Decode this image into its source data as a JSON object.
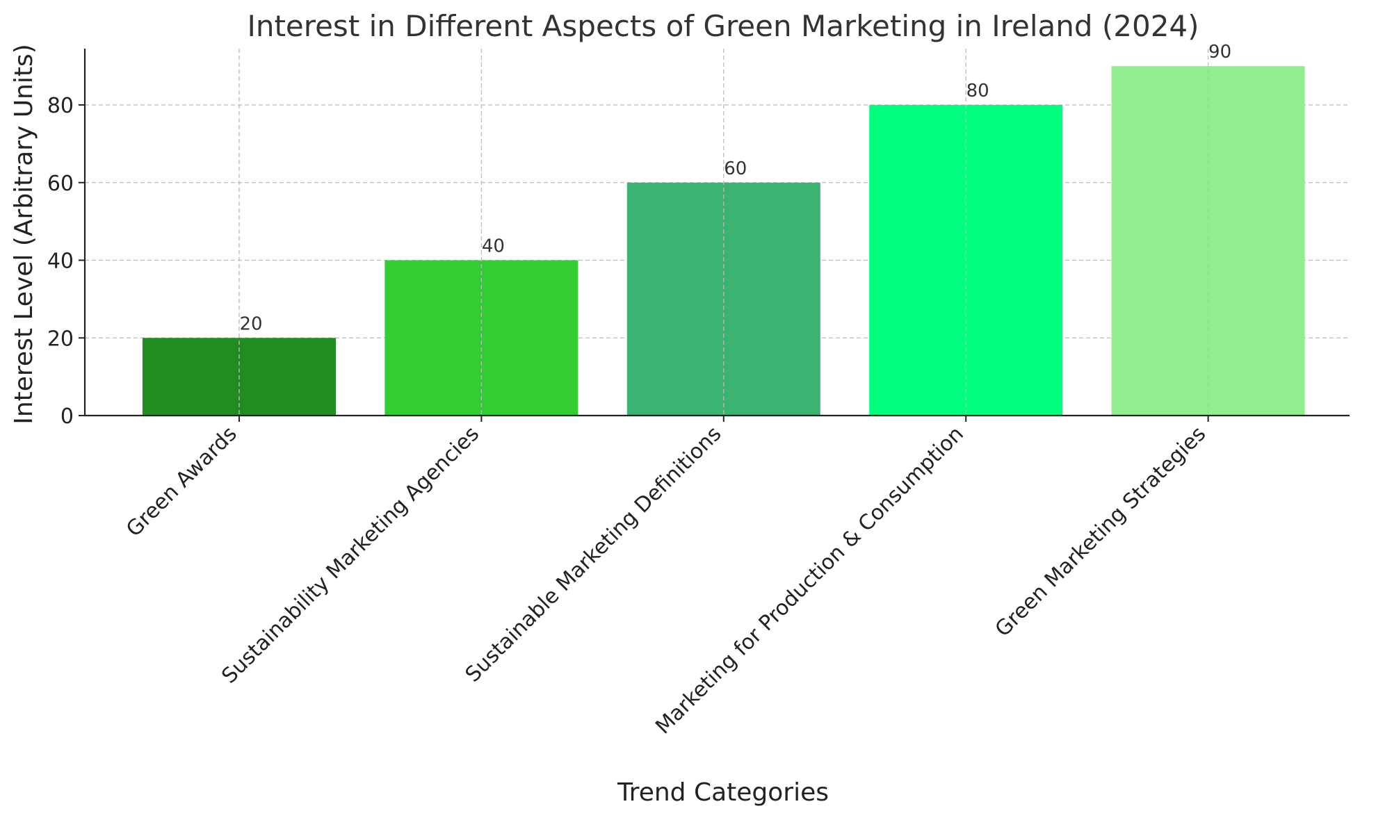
{
  "chart_data": {
    "type": "bar",
    "title": "Interest in Different Aspects of Green Marketing in Ireland (2024)",
    "xlabel": "Trend Categories",
    "ylabel": "Interest Level (Arbitrary Units)",
    "categories": [
      "Green Awards",
      "Sustainability Marketing Agencies",
      "Sustainable Marketing Definitions",
      "Marketing for Production & Consumption",
      "Green Marketing Strategies"
    ],
    "values": [
      20,
      40,
      60,
      80,
      90
    ],
    "colors": [
      "#228B22",
      "#32CD32",
      "#3CB371",
      "#00FF7F",
      "#90EE90"
    ],
    "yticks": [
      0,
      20,
      40,
      60,
      80
    ],
    "ylim": [
      0,
      94.5
    ],
    "grid": true,
    "legend": "none"
  }
}
